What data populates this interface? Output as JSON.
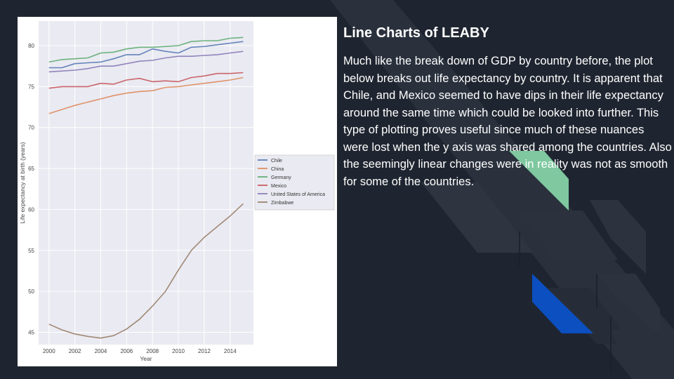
{
  "slide": {
    "title": "Line Charts of LEABY",
    "body": "Much like the break down of GDP by country before, the plot below breaks out life expectancy by country. It is apparent that Chile, and Mexico seemed to have dips in their life expectancy around the same time which could be looked into further. This type of plotting proves useful since much of these nuances were lost when the y axis was shared among the countries. Also the seemingly linear changes were in reality was not as smooth for some of the countries."
  },
  "colors": {
    "background": "#1f2530",
    "accent_green": "#7fc8a0",
    "accent_blue": "#0b4fc0",
    "plot_background": "#eaeaf2"
  },
  "chart_data": {
    "type": "line",
    "xlabel": "Year",
    "ylabel": "Life expectancy at birth (years)",
    "xlim": [
      1999.2,
      2015.8
    ],
    "ylim": [
      43.5,
      83.0
    ],
    "xticks": [
      2000,
      2002,
      2004,
      2006,
      2008,
      2010,
      2012,
      2014
    ],
    "yticks": [
      45,
      50,
      55,
      60,
      65,
      70,
      75,
      80
    ],
    "grid": true,
    "legend_position": "right, outside plot",
    "x": [
      2000,
      2001,
      2002,
      2003,
      2004,
      2005,
      2006,
      2007,
      2008,
      2009,
      2010,
      2011,
      2012,
      2013,
      2014,
      2015
    ],
    "series": [
      {
        "name": "Chile",
        "color": "#4c72b0",
        "values": [
          77.3,
          77.3,
          77.8,
          77.9,
          78.0,
          78.4,
          78.9,
          78.9,
          79.6,
          79.3,
          79.1,
          79.8,
          79.9,
          80.1,
          80.3,
          80.5
        ]
      },
      {
        "name": "China",
        "color": "#dd8452",
        "values": [
          71.7,
          72.2,
          72.7,
          73.1,
          73.5,
          73.9,
          74.2,
          74.4,
          74.5,
          74.9,
          75.0,
          75.2,
          75.4,
          75.6,
          75.8,
          76.1
        ]
      },
      {
        "name": "Germany",
        "color": "#55a868",
        "values": [
          78.0,
          78.3,
          78.4,
          78.5,
          79.1,
          79.2,
          79.6,
          79.8,
          79.8,
          79.9,
          80.0,
          80.5,
          80.6,
          80.6,
          80.9,
          81.0
        ]
      },
      {
        "name": "Mexico",
        "color": "#c44e52",
        "values": [
          74.8,
          75.0,
          75.0,
          75.0,
          75.4,
          75.3,
          75.8,
          76.0,
          75.6,
          75.7,
          75.6,
          76.1,
          76.3,
          76.6,
          76.6,
          76.7
        ]
      },
      {
        "name": "United States of America",
        "color": "#8172b3",
        "values": [
          76.8,
          76.9,
          77.0,
          77.2,
          77.5,
          77.5,
          77.8,
          78.1,
          78.2,
          78.5,
          78.7,
          78.7,
          78.8,
          78.9,
          79.1,
          79.3
        ]
      },
      {
        "name": "Zimbabwe",
        "color": "#937860",
        "values": [
          46.0,
          45.3,
          44.8,
          44.5,
          44.3,
          44.6,
          45.4,
          46.6,
          48.2,
          50.0,
          52.6,
          55.0,
          56.6,
          57.9,
          59.2,
          60.7
        ]
      }
    ]
  }
}
